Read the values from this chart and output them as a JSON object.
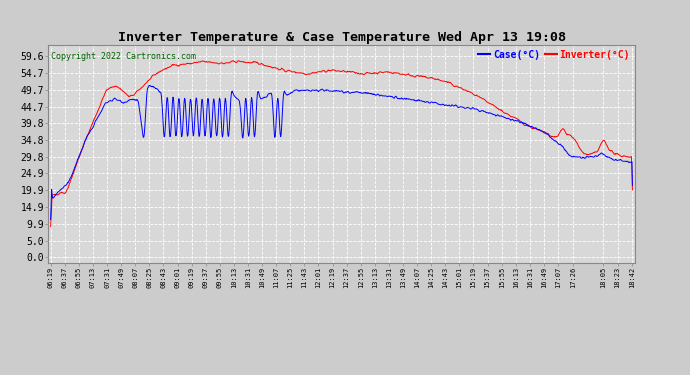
{
  "title": "Inverter Temperature & Case Temperature Wed Apr 13 19:08",
  "copyright": "Copyright 2022 Cartronics.com",
  "legend_case": "Case(°C)",
  "legend_inverter": "Inverter(°C)",
  "yticks": [
    0.0,
    5.0,
    9.9,
    14.9,
    19.9,
    24.9,
    29.8,
    34.8,
    39.8,
    44.7,
    49.7,
    54.7,
    59.6
  ],
  "ylim": [
    -1.5,
    63.0
  ],
  "bg_color": "#cccccc",
  "plot_bg_color": "#d8d8d8",
  "grid_color": "#ffffff",
  "case_color": "blue",
  "inverter_color": "red",
  "title_color": "#000000",
  "copyright_color": "#006400",
  "xtick_labels": [
    "06:19",
    "06:37",
    "06:55",
    "07:13",
    "07:31",
    "07:49",
    "08:07",
    "08:25",
    "08:43",
    "09:01",
    "09:19",
    "09:37",
    "09:55",
    "10:13",
    "10:31",
    "10:49",
    "11:07",
    "11:25",
    "11:43",
    "12:01",
    "12:19",
    "12:37",
    "12:55",
    "13:13",
    "13:31",
    "13:49",
    "14:07",
    "14:25",
    "14:43",
    "15:01",
    "15:19",
    "15:37",
    "15:55",
    "16:13",
    "16:31",
    "16:49",
    "17:07",
    "17:26",
    "18:05",
    "18:23",
    "18:42"
  ]
}
